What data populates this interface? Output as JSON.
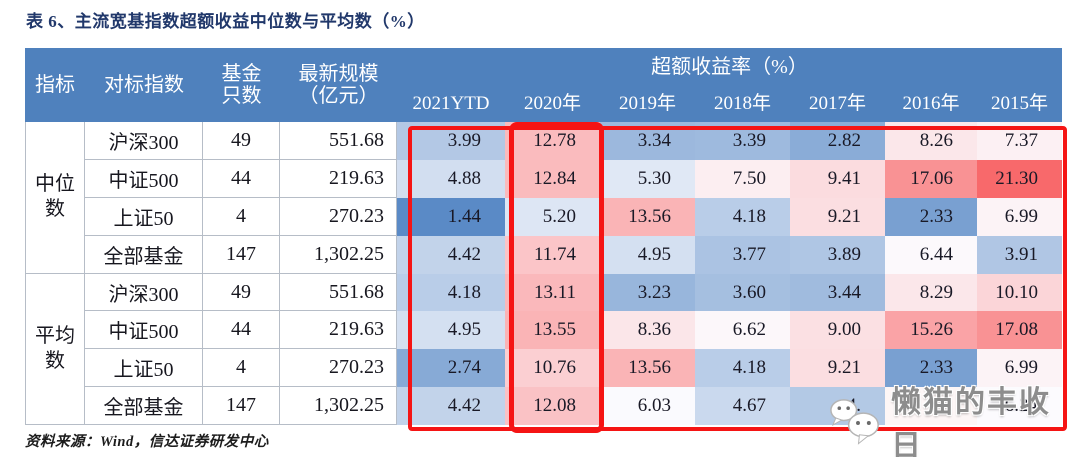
{
  "title": "表 6、主流宽基指数超额收益中位数与平均数（%）",
  "table": {
    "header": {
      "indicator": "指标",
      "benchmark_index": "对标指数",
      "fund_count_line1": "基金",
      "fund_count_line2": "只数",
      "latest_scale_line1": "最新规模",
      "latest_scale_line2": "（亿元）",
      "excess_return_span": "超额收益率（%）",
      "years": [
        "2021YTD",
        "2020年",
        "2019年",
        "2018年",
        "2017年",
        "2016年",
        "2015年"
      ]
    },
    "groups": [
      {
        "label_line1": "中位",
        "label_line2": "数",
        "rows": [
          {
            "index": "沪深300",
            "count": "49",
            "scale": "551.68",
            "values": [
              "3.99",
              "12.78",
              "3.34",
              "3.39",
              "2.82",
              "8.26",
              "7.37"
            ]
          },
          {
            "index": "中证500",
            "count": "44",
            "scale": "219.63",
            "values": [
              "4.88",
              "12.84",
              "5.30",
              "7.50",
              "9.41",
              "17.06",
              "21.30"
            ]
          },
          {
            "index": "上证50",
            "count": "4",
            "scale": "270.23",
            "values": [
              "1.44",
              "5.20",
              "13.56",
              "4.18",
              "9.21",
              "2.33",
              "6.99"
            ]
          },
          {
            "index": "全部基金",
            "count": "147",
            "scale": "1,302.25",
            "values": [
              "4.42",
              "11.74",
              "4.95",
              "3.77",
              "3.89",
              "6.44",
              "3.91"
            ]
          }
        ]
      },
      {
        "label_line1": "平均",
        "label_line2": "数",
        "rows": [
          {
            "index": "沪深300",
            "count": "49",
            "scale": "551.68",
            "values": [
              "4.18",
              "13.11",
              "3.23",
              "3.60",
              "3.44",
              "8.29",
              "10.10"
            ]
          },
          {
            "index": "中证500",
            "count": "44",
            "scale": "219.63",
            "values": [
              "4.95",
              "13.55",
              "8.36",
              "6.62",
              "9.00",
              "15.26",
              "17.08"
            ]
          },
          {
            "index": "上证50",
            "count": "4",
            "scale": "270.23",
            "values": [
              "2.74",
              "10.76",
              "13.56",
              "4.18",
              "9.21",
              "2.33",
              "6.99"
            ]
          },
          {
            "index": "全部基金",
            "count": "147",
            "scale": "1,302.25",
            "values": [
              "4.42",
              "12.08",
              "6.03",
              "4.67",
              "4.",
              "",
              "6.24"
            ]
          }
        ]
      }
    ]
  },
  "footer": "资料来源：Wind，信达证券研发中心",
  "watermark": {
    "text": "懒猫的丰收日",
    "icon": "wechat-bubbles-icon"
  },
  "colors": {
    "title": "#21386b",
    "header_bg": "#4f81bd",
    "highlight_box": "#f51414",
    "heat_scale_low": "#5a8ac6",
    "heat_scale_mid": "#fcfcff",
    "heat_scale_high": "#f8696b",
    "heat_min_value": 1.44,
    "heat_mid_value": 6.1,
    "heat_max_value": 21.3
  }
}
